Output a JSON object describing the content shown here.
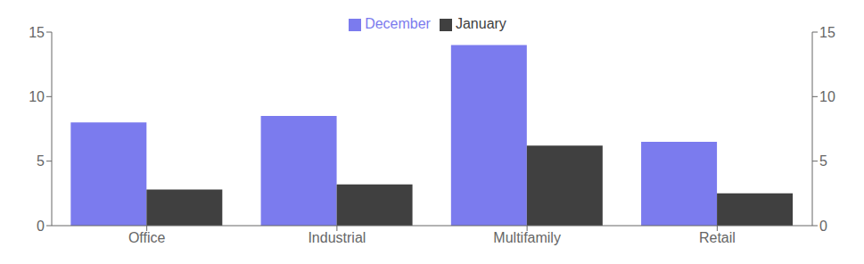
{
  "chart_data": {
    "type": "bar",
    "categories": [
      "Office",
      "Industrial",
      "Multifamily",
      "Retail"
    ],
    "series": [
      {
        "name": "December",
        "color": "#7B7BEE",
        "values": [
          8.0,
          8.5,
          14.0,
          6.5
        ]
      },
      {
        "name": "January",
        "color": "#404040",
        "values": [
          2.8,
          3.2,
          6.2,
          2.5
        ]
      }
    ],
    "ylim": [
      0,
      15
    ],
    "yticks": [
      0,
      5,
      10,
      15
    ],
    "y2lim": [
      0,
      15
    ],
    "y2ticks": [
      0,
      5,
      10,
      15
    ],
    "legend": "top",
    "grid": false
  }
}
